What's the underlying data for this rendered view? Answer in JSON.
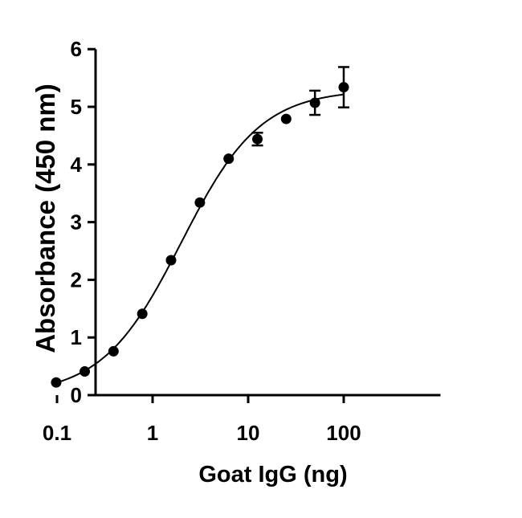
{
  "chart_data": {
    "type": "scatter",
    "title": "",
    "xlabel": "Goat IgG (ng)",
    "ylabel": "Absorbance (450 nm)",
    "x_scale": "log",
    "xlim": [
      0.1,
      100
    ],
    "ylim": [
      0,
      6
    ],
    "x_ticks": [
      "0.1",
      "1",
      "10",
      "100"
    ],
    "x_tick_values": [
      0.1,
      1,
      10,
      100
    ],
    "y_ticks": [
      "0",
      "1",
      "2",
      "3",
      "4",
      "5",
      "6"
    ],
    "grid": false,
    "legend": "none",
    "color": "#000000",
    "points": [
      {
        "x": 0.098,
        "y": 0.22,
        "err": 0
      },
      {
        "x": 0.195,
        "y": 0.41,
        "err": 0
      },
      {
        "x": 0.39,
        "y": 0.76,
        "err": 0
      },
      {
        "x": 0.78,
        "y": 1.41,
        "err": 0
      },
      {
        "x": 1.56,
        "y": 2.34,
        "err": 0
      },
      {
        "x": 3.125,
        "y": 3.34,
        "err": 0
      },
      {
        "x": 6.25,
        "y": 4.1,
        "err": 0
      },
      {
        "x": 12.5,
        "y": 4.44,
        "err": 0.11
      },
      {
        "x": 25,
        "y": 4.79,
        "err": 0
      },
      {
        "x": 50,
        "y": 5.07,
        "err": 0.21
      },
      {
        "x": 100,
        "y": 5.34,
        "err": 0.35
      }
    ],
    "fit": {
      "model": "4PL",
      "bottom": 0,
      "top": 5.3,
      "ec50": 2.0,
      "hill": 1.05
    }
  }
}
